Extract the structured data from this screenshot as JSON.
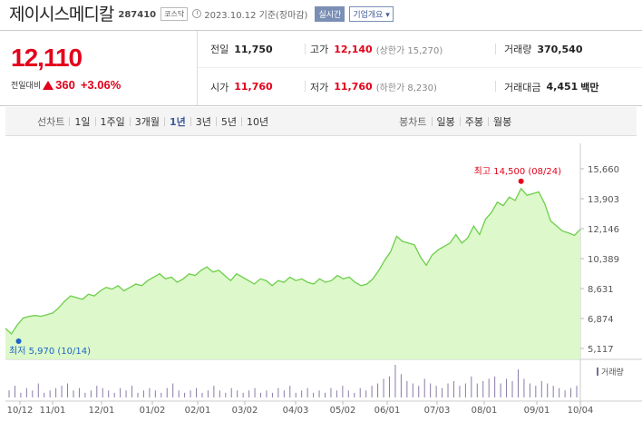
{
  "header": {
    "company": "제이시스메디칼",
    "code": "287410",
    "market": "코스닥",
    "date": "2023.10.12  기준(장마감)",
    "realtime_btn": "실시간",
    "info_btn": "기업개요 ▾"
  },
  "quote": {
    "price": "12,110",
    "change_label": "전일대비",
    "change": "360",
    "change_pct": "+3.06%",
    "prev_label": "전일",
    "prev": "11,750",
    "high_label": "고가",
    "high": "12,140",
    "upper_limit": "(상한가 15,270)",
    "volume_label": "거래량",
    "volume": "370,540",
    "open_label": "시가",
    "open": "11,760",
    "low_label": "저가",
    "low": "11,760",
    "lower_limit": "(하한가 8,230)",
    "amount_label": "거래대금",
    "amount": "4,451",
    "amount_unit": "백만"
  },
  "tabs": {
    "line": "선차트",
    "periods": [
      "1일",
      "1주일",
      "3개월",
      "1년",
      "3년",
      "5년",
      "10년"
    ],
    "active": "1년",
    "candle": "봉차트",
    "candle_periods": [
      "일봉",
      "주봉",
      "월봉"
    ]
  },
  "colors": {
    "up": "#e3001b",
    "low_marker": "#1e64c8",
    "area_fill": "#d9f7c4",
    "line": "#6ccf4a"
  },
  "chart_data": {
    "type": "area",
    "y_ticks": [
      "15,660",
      "13,903",
      "12,146",
      "10,389",
      "8,631",
      "6,874",
      "5,117"
    ],
    "ylim": [
      5117,
      15660
    ],
    "x_ticks": [
      "10/12",
      "11/01",
      "12/01",
      "01/02",
      "02/01",
      "03/02",
      "04/03",
      "05/02",
      "06/01",
      "07/03",
      "08/01",
      "09/01",
      "10/04"
    ],
    "high_label": "최고 14,500 (08/24)",
    "low_label": "최저 5,970 (10/14)",
    "volume_legend": "거래량",
    "series": [
      {
        "values": [
          6300,
          5970,
          6500,
          6900,
          7000,
          7050,
          7000,
          7100,
          7200,
          7500,
          7900,
          8200,
          8100,
          8000,
          8300,
          8200,
          8500,
          8700,
          8600,
          8800,
          8500,
          8700,
          8900,
          8800,
          9100,
          9300,
          9500,
          9200,
          9300,
          9000,
          9200,
          9500,
          9400,
          9700,
          9900,
          9600,
          9700,
          9400,
          9100,
          9500,
          9300,
          9100,
          8900,
          9200,
          9100,
          8800,
          9100,
          9000,
          9300,
          9100,
          9200,
          9000,
          8900,
          9200,
          9000,
          9100,
          9400,
          9200,
          9300,
          9000,
          8800,
          8900,
          9200,
          9700,
          10300,
          10800,
          11700,
          11400,
          11300,
          11200,
          10500,
          10000,
          10600,
          10900,
          11100,
          11300,
          11800,
          11300,
          11600,
          12300,
          11800,
          12700,
          13100,
          13700,
          13500,
          14000,
          13800,
          14500,
          14100,
          14200,
          14300,
          13600,
          12600,
          12300,
          12000,
          11900,
          11750,
          12110
        ]
      }
    ],
    "volume": [
      3,
      5,
      2,
      4,
      3,
      6,
      2,
      3,
      4,
      5,
      6,
      3,
      4,
      2,
      3,
      5,
      4,
      3,
      2,
      4,
      3,
      5,
      2,
      3,
      4,
      3,
      2,
      4,
      6,
      3,
      2,
      3,
      4,
      2,
      3,
      5,
      3,
      2,
      4,
      3,
      2,
      3,
      4,
      2,
      3,
      2,
      4,
      3,
      5,
      2,
      3,
      4,
      2,
      3,
      2,
      4,
      3,
      5,
      3,
      2,
      4,
      3,
      5,
      6,
      8,
      9,
      14,
      10,
      7,
      6,
      5,
      8,
      6,
      5,
      4,
      6,
      7,
      5,
      6,
      9,
      6,
      7,
      8,
      9,
      6,
      8,
      7,
      12,
      8,
      6,
      5,
      7,
      6,
      5,
      4,
      3,
      4,
      5
    ]
  }
}
